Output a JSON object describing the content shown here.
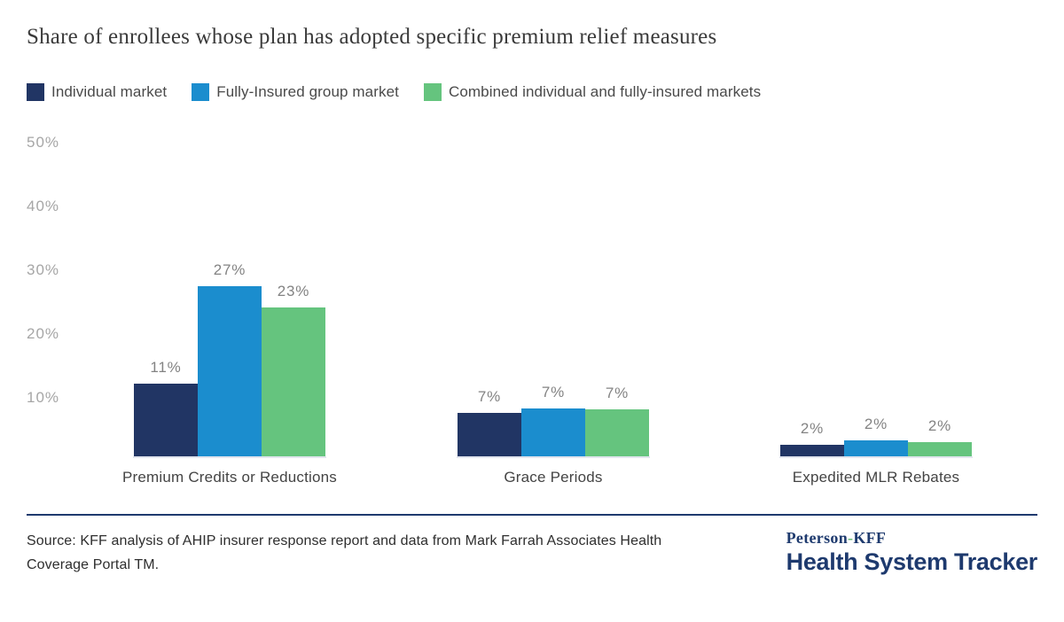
{
  "title": "Share of enrollees whose plan has adopted specific premium relief measures",
  "legend": {
    "items": [
      {
        "label": "Individual market",
        "color": "#213564"
      },
      {
        "label": "Fully-Insured group market",
        "color": "#1b8dce"
      },
      {
        "label": "Combined individual and fully-insured markets",
        "color": "#65c47e"
      }
    ]
  },
  "chart_data": {
    "type": "bar",
    "title": "Share of enrollees whose plan has adopted specific premium relief measures",
    "categories": [
      "Premium Credits or Reductions",
      "Grace Periods",
      "Expedited MLR Rebates"
    ],
    "series": [
      {
        "name": "Individual market",
        "color": "#213564",
        "values": [
          11,
          7,
          2
        ],
        "labels": [
          "11%",
          "7%",
          "2%"
        ],
        "precise_heights_pct": [
          11.4,
          6.8,
          1.8
        ]
      },
      {
        "name": "Fully-Insured group market",
        "color": "#1b8dce",
        "values": [
          27,
          7,
          2
        ],
        "labels": [
          "27%",
          "7%",
          "2%"
        ],
        "precise_heights_pct": [
          26.7,
          7.5,
          2.5
        ]
      },
      {
        "name": "Combined individual and fully-insured markets",
        "color": "#65c47e",
        "values": [
          23,
          7,
          2
        ],
        "labels": [
          "23%",
          "7%",
          "2%"
        ],
        "precise_heights_pct": [
          23.3,
          7.3,
          2.2
        ]
      }
    ],
    "xlabel": "",
    "ylabel": "",
    "ylim": [
      0,
      50
    ],
    "yticks": [
      "50%",
      "40%",
      "30%",
      "20%",
      "10%"
    ],
    "grid": false,
    "legend_position": "top"
  },
  "footer": {
    "source_lines": [
      "Source: KFF analysis of AHIP insurer response report and data from Mark Farrah Associates Health",
      "Coverage Portal TM."
    ],
    "divider_color": "#1e3a6e"
  },
  "logo": {
    "top_pre": "Peterson",
    "top_hyphen": "-",
    "top_post": "KFF",
    "bottom": "Health System Tracker",
    "navy": "#1e3a6e",
    "green": "#6abf77"
  }
}
